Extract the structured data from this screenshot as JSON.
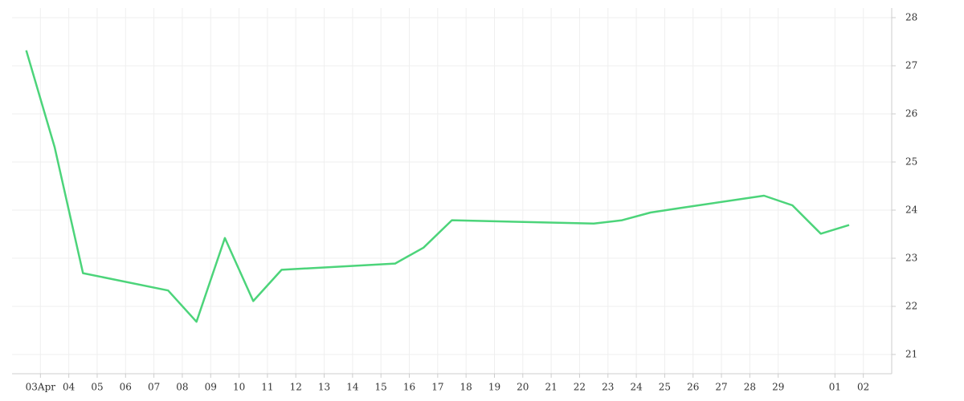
{
  "chart_data": {
    "type": "line",
    "x": [
      -0.5,
      0.5,
      1.5,
      4.5,
      5.5,
      6.5,
      7.5,
      8.5,
      12.5,
      13.5,
      14.5,
      19.5,
      20.5,
      21.5,
      22.5,
      25.5,
      26.5,
      27.5,
      28.5
    ],
    "series": [
      {
        "color": "#4cd47a",
        "values": [
          27.32,
          25.31,
          22.69,
          22.33,
          21.68,
          23.42,
          22.11,
          22.76,
          22.89,
          23.22,
          23.79,
          23.72,
          23.79,
          23.95,
          24.04,
          24.3,
          24.1,
          23.51,
          23.69
        ]
      }
    ],
    "xlim": [
      -1,
      30
    ],
    "xticks": [
      {
        "value": 0,
        "label": "03Apr"
      },
      {
        "value": 1,
        "label": "04"
      },
      {
        "value": 2,
        "label": "05"
      },
      {
        "value": 3,
        "label": "06"
      },
      {
        "value": 4,
        "label": "07"
      },
      {
        "value": 5,
        "label": "08"
      },
      {
        "value": 6,
        "label": "09"
      },
      10,
      11,
      12,
      13,
      14,
      15,
      16,
      17,
      18,
      19,
      20,
      21,
      22,
      23,
      24,
      25,
      26,
      27,
      28,
      29,
      {
        "value": 28,
        "label": "01"
      },
      {
        "value": 29,
        "label": "02"
      }
    ],
    "ylim": [
      20.6,
      28.2
    ],
    "yticks": [
      21,
      22,
      23,
      24,
      25,
      26,
      27,
      28
    ],
    "grid": true
  }
}
